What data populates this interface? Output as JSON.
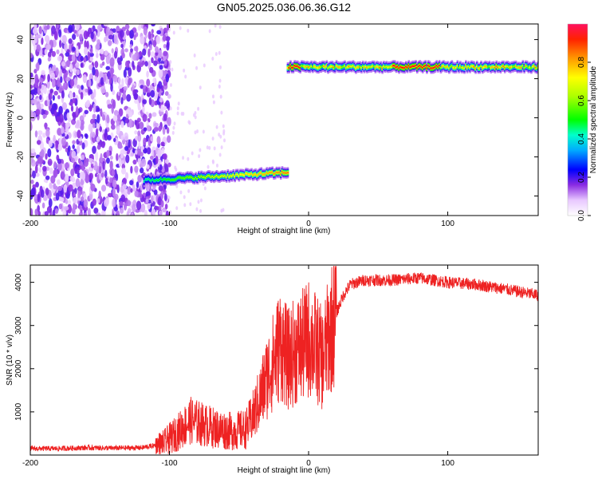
{
  "figure_title": "GN05.2025.036.06.36.G12",
  "chart_data": [
    {
      "type": "heatmap",
      "xlabel": "Height of straight line (km)",
      "ylabel": "Frequency (Hz)",
      "xlim": [
        -200,
        165
      ],
      "ylim": [
        -50,
        48
      ],
      "xticks": [
        -200,
        -100,
        0,
        100
      ],
      "yticks": [
        -40,
        -20,
        0,
        20,
        40
      ],
      "colorbar": {
        "label": "Normalized spectral amplitude",
        "range": [
          0,
          1
        ],
        "ticks": [
          0.0,
          0.2,
          0.4,
          0.6,
          0.8
        ]
      },
      "noise_region": {
        "x_range": [
          -200,
          -100
        ],
        "note_text": ""
      },
      "features": [
        {
          "x_start": -118,
          "x_end": -15,
          "freq_start": -32,
          "freq_end": -28
        },
        {
          "x_start": -15,
          "x_end": 165,
          "freq_start": 26,
          "freq_end": 26
        }
      ]
    },
    {
      "type": "line",
      "xlabel": "Height of straight line (km)",
      "ylabel": "SNR (10 * v/v)",
      "xlim": [
        -200,
        165
      ],
      "ylim": [
        0,
        4400
      ],
      "xticks": [
        -200,
        -100,
        0,
        100
      ],
      "yticks": [
        1000,
        2000,
        3000,
        4000
      ],
      "series": [
        {
          "color": "#ee2222",
          "x": [
            -200,
            -180,
            -160,
            -140,
            -120,
            -105,
            -95,
            -85,
            -75,
            -65,
            -55,
            -45,
            -40,
            -35,
            -30,
            -25,
            -20,
            -15,
            -10,
            -5,
            0,
            5,
            10,
            15,
            20,
            25,
            30,
            40,
            50,
            60,
            80,
            100,
            120,
            140,
            165
          ],
          "y": [
            150,
            150,
            170,
            160,
            170,
            250,
            500,
            800,
            700,
            600,
            550,
            600,
            900,
            1300,
            1800,
            2200,
            2600,
            2200,
            2400,
            2500,
            2700,
            2500,
            2200,
            2800,
            3300,
            3700,
            3950,
            4050,
            4050,
            4050,
            4100,
            4000,
            3950,
            3850,
            3700
          ]
        }
      ]
    }
  ]
}
